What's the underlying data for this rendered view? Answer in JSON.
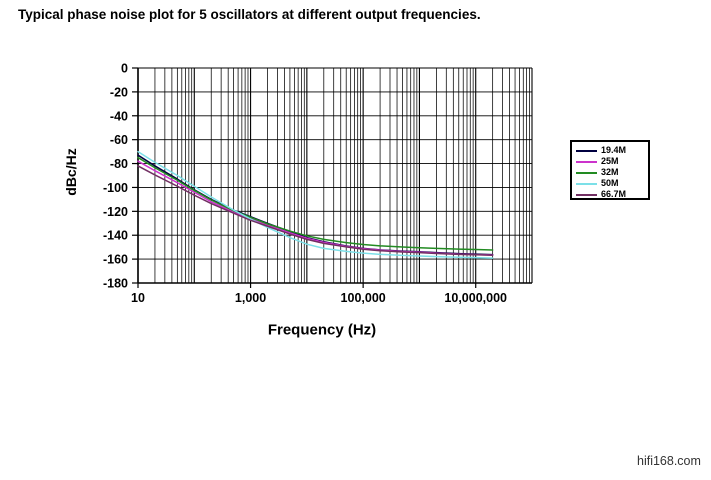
{
  "title": "Typical phase noise plot for 5 oscillators at different output frequencies.",
  "watermark": "hifi168.com",
  "chart_data": {
    "type": "line",
    "title": "",
    "xlabel": "Frequency (Hz)",
    "ylabel": "dBc/Hz",
    "x_scale": "log",
    "x_range": [
      10,
      100000000
    ],
    "y_range": [
      -180,
      0
    ],
    "grid": "on",
    "legend_position": "right",
    "y_ticks": [
      0,
      -20,
      -40,
      -60,
      -80,
      -100,
      -120,
      -140,
      -160,
      -180
    ],
    "x_tick_labels": [
      {
        "value": 10,
        "label": "10"
      },
      {
        "value": 1000,
        "label": "1,000"
      },
      {
        "value": 100000,
        "label": "100,000"
      },
      {
        "value": 10000000,
        "label": "10,000,000"
      }
    ],
    "x": [
      10,
      20,
      50,
      100,
      200,
      500,
      1000,
      2000,
      5000,
      10000,
      20000,
      50000,
      100000,
      200000,
      500000,
      1000000,
      2000000,
      5000000,
      10000000,
      20000000
    ],
    "series": [
      {
        "name": "19.4M",
        "color": "#000040",
        "values": [
          -73,
          -82,
          -93,
          -102,
          -110,
          -119,
          -124.5,
          -130,
          -137,
          -142,
          -145.5,
          -149,
          -151,
          -152.3,
          -153.3,
          -153.8,
          -154.6,
          -155.4,
          -155.8,
          -156.2
        ]
      },
      {
        "name": "25M",
        "color": "#CC33CC",
        "values": [
          -78,
          -86,
          -96,
          -104,
          -112,
          -120.5,
          -126,
          -131.5,
          -138,
          -142.5,
          -146,
          -149.3,
          -151.2,
          -152.5,
          -153.6,
          -154.2,
          -155,
          -155.8,
          -156.2,
          -156.6
        ]
      },
      {
        "name": "32M",
        "color": "#228B22",
        "values": [
          -75,
          -83.5,
          -94,
          -102.5,
          -110.5,
          -119.5,
          -125,
          -130.5,
          -136.5,
          -140.5,
          -143.5,
          -146.2,
          -147.8,
          -148.9,
          -149.9,
          -150.5,
          -151,
          -151.6,
          -152,
          -152.4
        ]
      },
      {
        "name": "50M",
        "color": "#7CE0E8",
        "values": [
          -70,
          -79,
          -90,
          -99,
          -108,
          -119,
          -126.5,
          -133.5,
          -142,
          -147.5,
          -151,
          -153.5,
          -155,
          -156,
          -156.9,
          -157.4,
          -157.9,
          -158.4,
          -158.8,
          -159.2
        ]
      },
      {
        "name": "66.7M",
        "color": "#722F63",
        "values": [
          -82,
          -89.5,
          -99,
          -106.5,
          -113.5,
          -121.5,
          -127.5,
          -132.5,
          -139,
          -143.5,
          -146.8,
          -149.8,
          -151.7,
          -153,
          -154,
          -154.6,
          -155.3,
          -156,
          -156.4,
          -156.8
        ]
      }
    ]
  }
}
